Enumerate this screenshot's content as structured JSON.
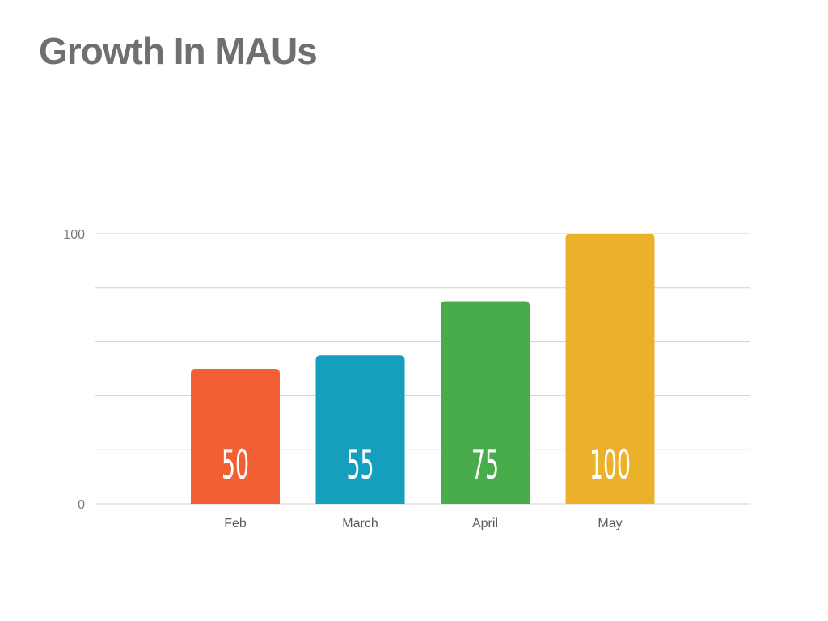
{
  "title": "Growth In MAUs",
  "chart_data": {
    "type": "bar",
    "title": "Growth In MAUs",
    "xlabel": "",
    "ylabel": "",
    "categories": [
      "Feb",
      "March",
      "April",
      "May"
    ],
    "values": [
      50,
      55,
      75,
      100
    ],
    "ylim": [
      0,
      100
    ],
    "y_tick_labels": [
      "0",
      "100"
    ],
    "gridlines": [
      0,
      20,
      40,
      60,
      80,
      100
    ],
    "grid": true,
    "legend": "none",
    "colors": [
      "#f15f33",
      "#169fbd",
      "#48ac4a",
      "#ebb12a"
    ]
  }
}
